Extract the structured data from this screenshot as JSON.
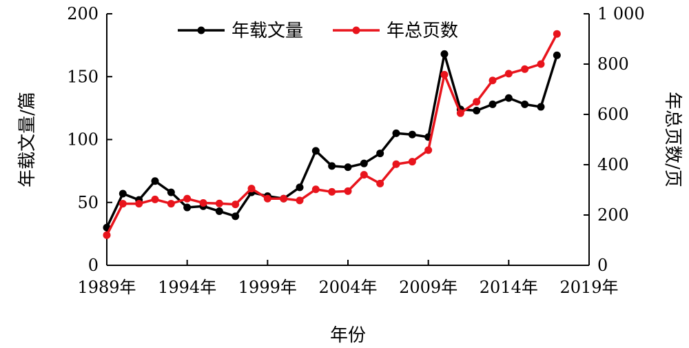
{
  "chart_data": {
    "type": "line",
    "x": [
      1989,
      1990,
      1991,
      1992,
      1993,
      1994,
      1995,
      1996,
      1997,
      1998,
      1999,
      2000,
      2001,
      2002,
      2003,
      2004,
      2005,
      2006,
      2007,
      2008,
      2009,
      2010,
      2011,
      2012,
      2013,
      2014,
      2015,
      2016,
      2017
    ],
    "series": [
      {
        "name": "年载文量",
        "axis": "left",
        "color": "#000000",
        "values": [
          30,
          57,
          52,
          67,
          58,
          46,
          47,
          43,
          39,
          58,
          55,
          53,
          62,
          91,
          79,
          78,
          81,
          89,
          105,
          104,
          102,
          168,
          124,
          123,
          128,
          133,
          128,
          126,
          167
        ]
      },
      {
        "name": "年总页数",
        "axis": "right",
        "color": "#e8141c",
        "values": [
          120,
          245,
          245,
          262,
          245,
          265,
          248,
          246,
          242,
          305,
          265,
          265,
          258,
          302,
          292,
          295,
          360,
          325,
          402,
          412,
          458,
          758,
          605,
          650,
          735,
          762,
          780,
          800,
          920
        ]
      }
    ],
    "xlabel": "年份",
    "ylabel_left": "年载文量/篇",
    "ylabel_right": "年总页数/页",
    "xlim": [
      1989,
      2019
    ],
    "ylim_left": [
      0,
      200
    ],
    "ylim_right": [
      0,
      1000
    ],
    "x_tick_labels": [
      "1989年",
      "1994年",
      "1999年",
      "2004年",
      "2009年",
      "2014年",
      "2019年"
    ],
    "x_tick_values": [
      1989,
      1994,
      1999,
      2004,
      2009,
      2014,
      2019
    ],
    "y_left_ticks": [
      "0",
      "50",
      "100",
      "150",
      "200"
    ],
    "y_right_ticks": [
      "0",
      "200",
      "400",
      "600",
      "800",
      "1 000"
    ],
    "legend_position": "top-center",
    "grid": false
  }
}
